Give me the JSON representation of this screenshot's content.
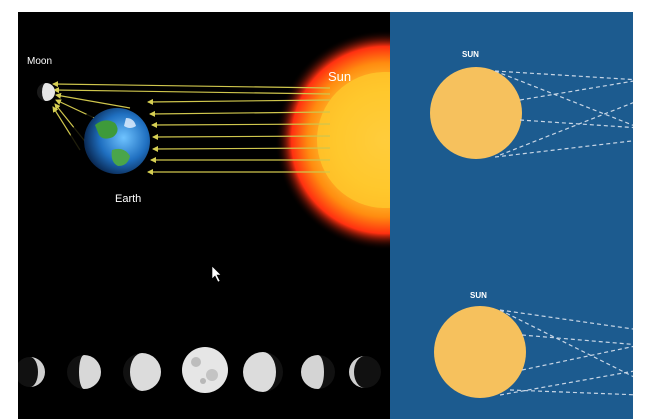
{
  "left_panel": {
    "moon_label": "Moon",
    "earth_label": "Earth",
    "sun_label": "Sun",
    "phases": [
      "waxing-crescent",
      "first-quarter",
      "waxing-gibbous",
      "full-moon",
      "waning-gibbous",
      "last-quarter",
      "waning-crescent"
    ]
  },
  "right_panel": {
    "sun_top_label": "SUN",
    "sun_bottom_label": "SUN"
  },
  "colors": {
    "space": "#000000",
    "panel_blue": "#1c5b8f",
    "sun_disc": "#f6c15d",
    "ray": "#c9c04a"
  }
}
